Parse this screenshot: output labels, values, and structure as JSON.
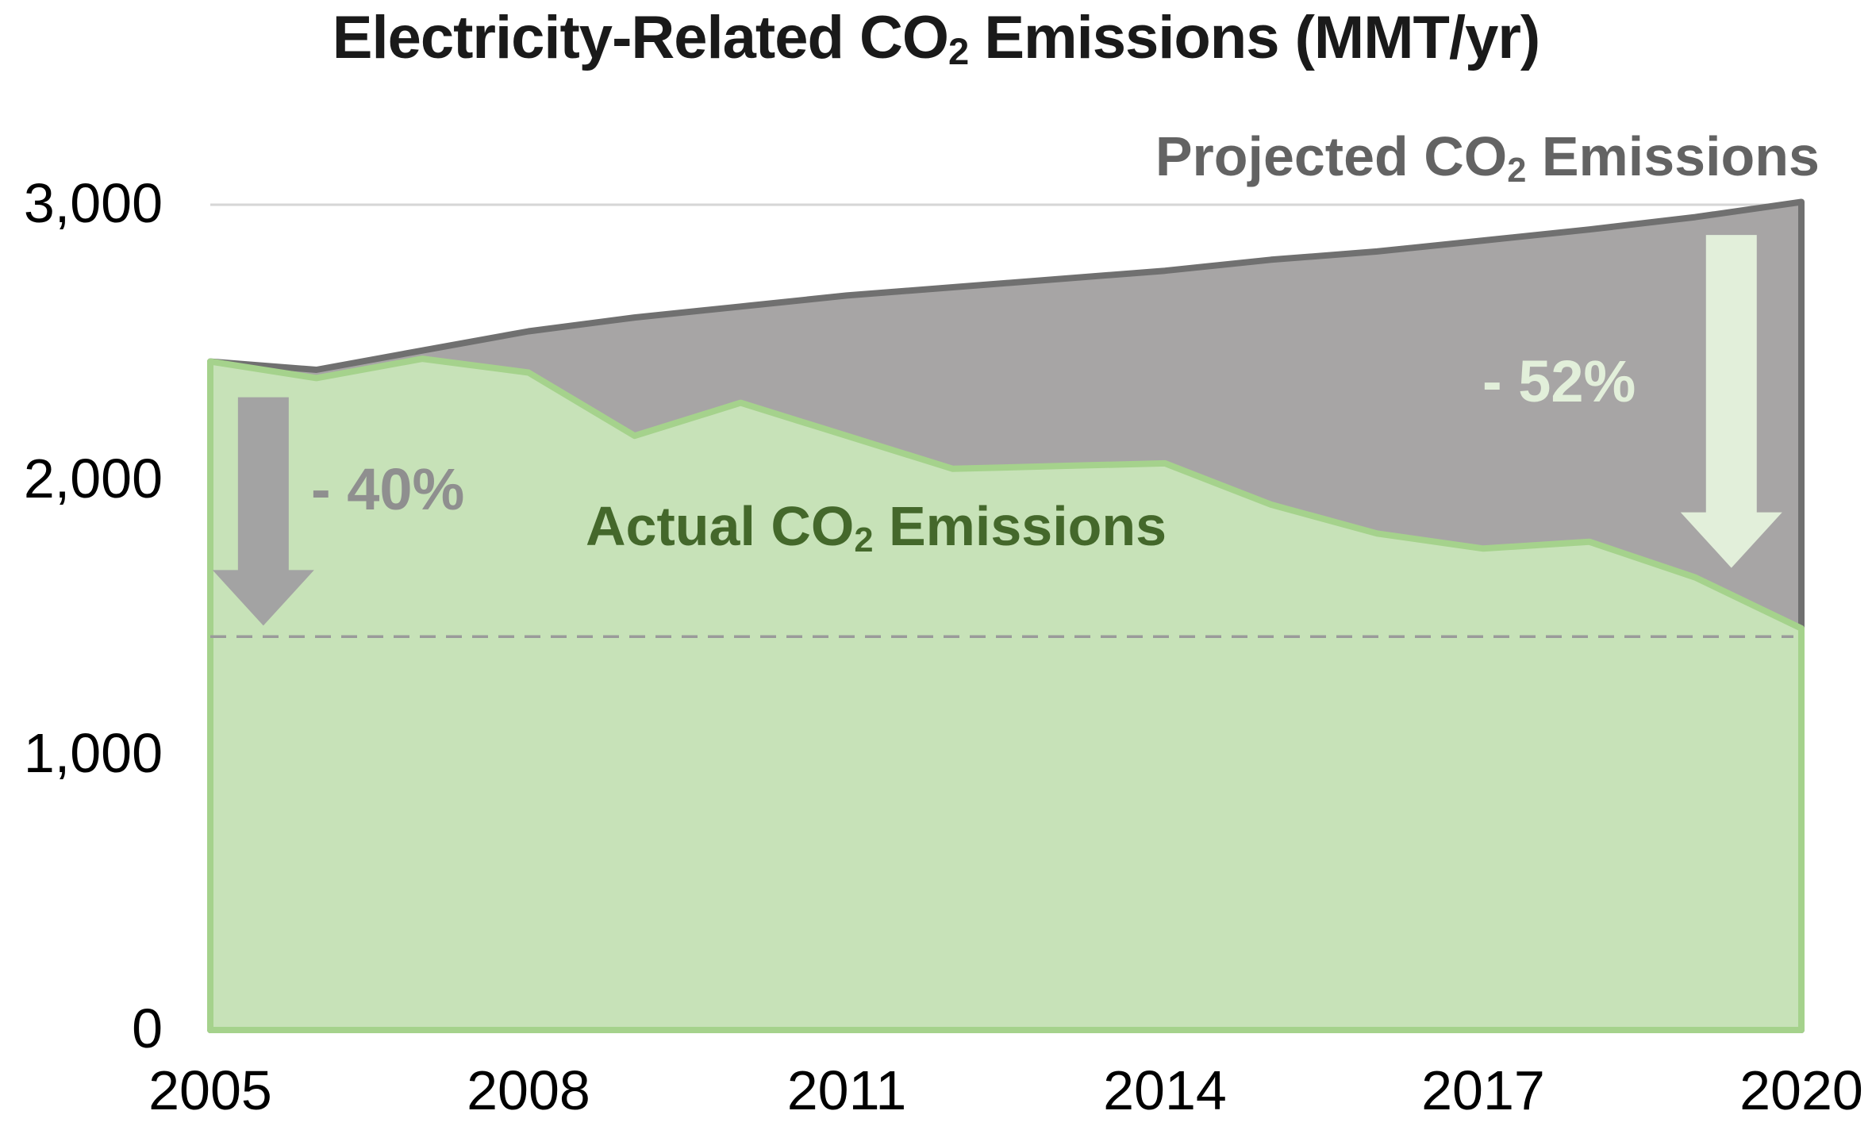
{
  "title": {
    "prefix": "Electricity-Related CO",
    "sub": "2",
    "suffix": " Emissions (MMT/yr)"
  },
  "series_labels": {
    "projected": {
      "prefix": "Projected CO",
      "sub": "2",
      "suffix": " Emissions",
      "color": "#636363"
    },
    "actual": {
      "prefix": "Actual CO",
      "sub": "2",
      "suffix": " Emissions",
      "color": "#44682b"
    }
  },
  "chart_data": {
    "type": "area",
    "title": "Electricity-Related CO2 Emissions (MMT/yr)",
    "x": [
      2005,
      2006,
      2007,
      2008,
      2009,
      2010,
      2011,
      2012,
      2013,
      2014,
      2015,
      2016,
      2017,
      2018,
      2019,
      2020
    ],
    "series": [
      {
        "name": "Projected CO2 Emissions",
        "values": [
          2430,
          2400,
          2470,
          2540,
          2590,
          2630,
          2670,
          2700,
          2730,
          2760,
          2800,
          2830,
          2870,
          2910,
          2955,
          3010
        ],
        "fill": "#a7a5a5",
        "stroke": "#707070"
      },
      {
        "name": "Actual CO2 Emissions",
        "values": [
          2430,
          2370,
          2440,
          2390,
          2160,
          2280,
          2160,
          2040,
          2050,
          2060,
          1910,
          1805,
          1750,
          1775,
          1645,
          1460
        ],
        "fill": "#c7e2b8",
        "stroke": "#a5d28c"
      }
    ],
    "xlim": [
      2005,
      2020
    ],
    "ylim": [
      0,
      3000
    ],
    "x_ticks": [
      {
        "label": "2005",
        "year": 2005
      },
      {
        "label": "2008",
        "year": 2008
      },
      {
        "label": "2011",
        "year": 2011
      },
      {
        "label": "2014",
        "year": 2014
      },
      {
        "label": "2017",
        "year": 2017
      },
      {
        "label": "2020",
        "year": 2020
      }
    ],
    "y_ticks": [
      {
        "label": "0",
        "value": 0
      },
      {
        "label": "1,000",
        "value": 1000
      },
      {
        "label": "2,000",
        "value": 2000
      },
      {
        "label": "3,000",
        "value": 3000
      }
    ],
    "gridline_value": 3000,
    "gridline_color": "#d6d6d6",
    "target_line_value": 1430,
    "target_line_color": "#9a9a9a",
    "legend_position": "inside-plot-labels",
    "grid": "single-top-gridline",
    "annotations": [
      {
        "text": "- 40%",
        "color": "#8f8f8f",
        "arrow_color": "#a3a3a3",
        "arrow": {
          "x_year": 2005.5,
          "from_value": 2300,
          "to_value": 1470
        }
      },
      {
        "text": "- 52%",
        "color": "#e2efda",
        "arrow_color": "#e2efda",
        "arrow": {
          "x_year": 2019.34,
          "from_value": 2890,
          "to_value": 1680
        }
      }
    ]
  }
}
